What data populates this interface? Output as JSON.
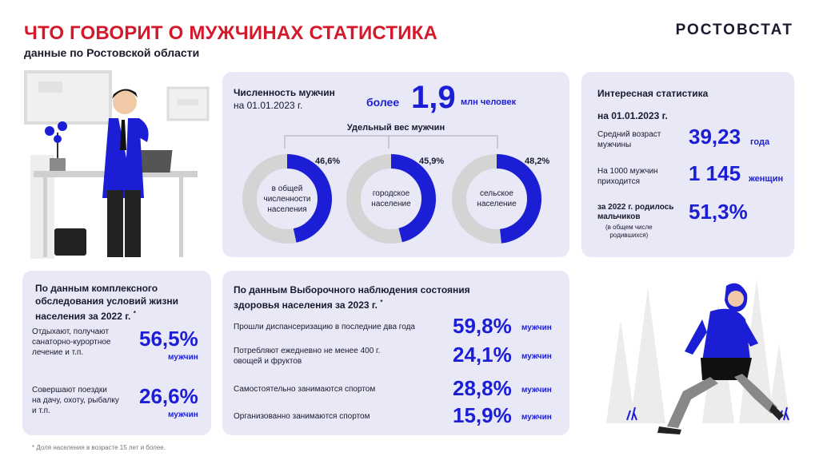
{
  "header": {
    "title": "ЧТО ГОВОРИТ О МУЖЧИНАХ СТАТИСТИКА",
    "subtitle": "данные по Ростовской области",
    "logo": "РОСТОВСТАТ"
  },
  "population": {
    "label_line1": "Численность мужчин",
    "label_line2": "на 01.01.2023 г.",
    "prefix": "более",
    "value": "1,9",
    "unit": "млн человек",
    "share_title": "Удельный вес мужчин",
    "donuts": [
      {
        "label": [
          "в общей",
          "численности",
          "населения"
        ],
        "pct_text": "46,6%",
        "pct": 46.6
      },
      {
        "label": [
          "городское",
          "население"
        ],
        "pct_text": "45,9%",
        "pct": 45.9
      },
      {
        "label": [
          "сельское",
          "население"
        ],
        "pct_text": "48,2%",
        "pct": 48.2
      }
    ]
  },
  "interesting": {
    "title": "Интересная статистика",
    "date": "на 01.01.2023 г.",
    "age_label": [
      "Средний возраст",
      "мужчины"
    ],
    "age_value": "39,23",
    "age_unit": "года",
    "ratio_label": [
      "На 1000 мужчин",
      "приходится"
    ],
    "ratio_value": "1 145",
    "ratio_unit": "женщин",
    "births_label": [
      "за 2022 г. родилось",
      "мальчиков"
    ],
    "births_note": [
      "(в общем числе",
      "родившихся)"
    ],
    "births_value": "51,3%"
  },
  "living": {
    "title": [
      "По данным комплексного",
      "обследования условий жизни",
      "населения за 2022 г."
    ],
    "star": "*",
    "items": [
      {
        "text": [
          "Отдыхают, получают",
          "санаторно-курортное",
          "лечение и т.п."
        ],
        "value": "56,5%",
        "unit": "мужчин"
      },
      {
        "text": [
          "Совершают поездки",
          "на дачу, охоту, рыбалку",
          "и т.п."
        ],
        "value": "26,6%",
        "unit": "мужчин"
      }
    ]
  },
  "health": {
    "title": [
      "По данным  Выборочного наблюдения состояния",
      "здоровья населения за 2023 г."
    ],
    "star": "*",
    "items": [
      {
        "text": [
          "Прошли диспансеризацию в последние два года"
        ],
        "value": "59,8%",
        "unit": "мужчин"
      },
      {
        "text": [
          "Потребляют ежедневно не менее 400 г.",
          "овощей и фруктов"
        ],
        "value": "24,1%",
        "unit": "мужчин"
      },
      {
        "text": [
          "Самостоятельно занимаются спортом"
        ],
        "value": "28,8%",
        "unit": "мужчин"
      },
      {
        "text": [
          "Организованно занимаются спортом"
        ],
        "value": "15,9%",
        "unit": "мужчин"
      }
    ]
  },
  "footnote": "* Доля населения в возрасте 15 лет и более.",
  "colors": {
    "accent": "#1c1ed6",
    "title": "#d6182b",
    "card": "#e9e8f7",
    "ring": "#d4d4d4"
  }
}
